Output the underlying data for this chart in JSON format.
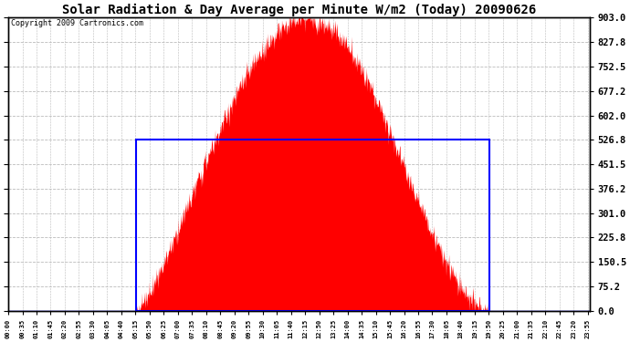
{
  "title": "Solar Radiation & Day Average per Minute W/m2 (Today) 20090626",
  "copyright": "Copyright 2009 Cartronics.com",
  "ymin": 0.0,
  "ymax": 903.0,
  "yticks": [
    0.0,
    75.2,
    150.5,
    225.8,
    301.0,
    376.2,
    451.5,
    526.8,
    602.0,
    677.2,
    752.5,
    827.8,
    903.0
  ],
  "day_average": 526.8,
  "solar_color": "#FF0000",
  "avg_line_color": "#0000FF",
  "bg_color": "#FFFFFF",
  "grid_color": "#BBBBBB",
  "sunrise_minute": 316,
  "sunset_minute": 1191,
  "peak_minute": 745,
  "peak_value": 903.0,
  "total_minutes": 1440,
  "tick_interval": 35
}
